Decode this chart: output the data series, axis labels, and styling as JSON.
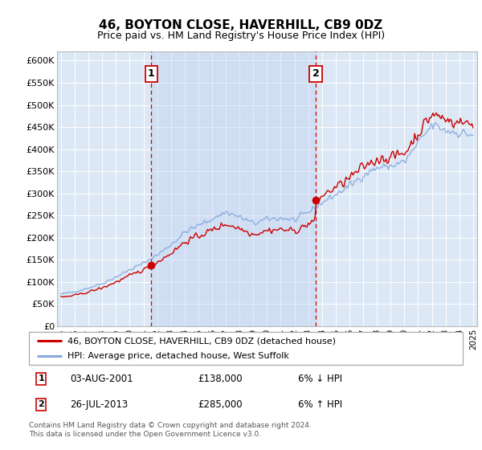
{
  "title": "46, BOYTON CLOSE, HAVERHILL, CB9 0DZ",
  "subtitle": "Price paid vs. HM Land Registry's House Price Index (HPI)",
  "ylabel_ticks": [
    "£0",
    "£50K",
    "£100K",
    "£150K",
    "£200K",
    "£250K",
    "£300K",
    "£350K",
    "£400K",
    "£450K",
    "£500K",
    "£550K",
    "£600K"
  ],
  "ylim": [
    0,
    620000
  ],
  "xlim_start": 1994.7,
  "xlim_end": 2025.3,
  "background_color": "#dce8f5",
  "grid_color": "#ffffff",
  "sale1_year": 2001.58,
  "sale1_price": 138000,
  "sale2_year": 2013.56,
  "sale2_price": 285000,
  "legend_line1": "46, BOYTON CLOSE, HAVERHILL, CB9 0DZ (detached house)",
  "legend_line2": "HPI: Average price, detached house, West Suffolk",
  "table_row1_num": "1",
  "table_row1_date": "03-AUG-2001",
  "table_row1_price": "£138,000",
  "table_row1_note": "6% ↓ HPI",
  "table_row2_num": "2",
  "table_row2_date": "26-JUL-2013",
  "table_row2_price": "£285,000",
  "table_row2_note": "6% ↑ HPI",
  "footer": "Contains HM Land Registry data © Crown copyright and database right 2024.\nThis data is licensed under the Open Government Licence v3.0.",
  "line_color_price": "#cc0000",
  "line_color_hpi": "#88aadd",
  "dashed_line_color": "#cc0000",
  "shade_color": "#c8d8ee"
}
